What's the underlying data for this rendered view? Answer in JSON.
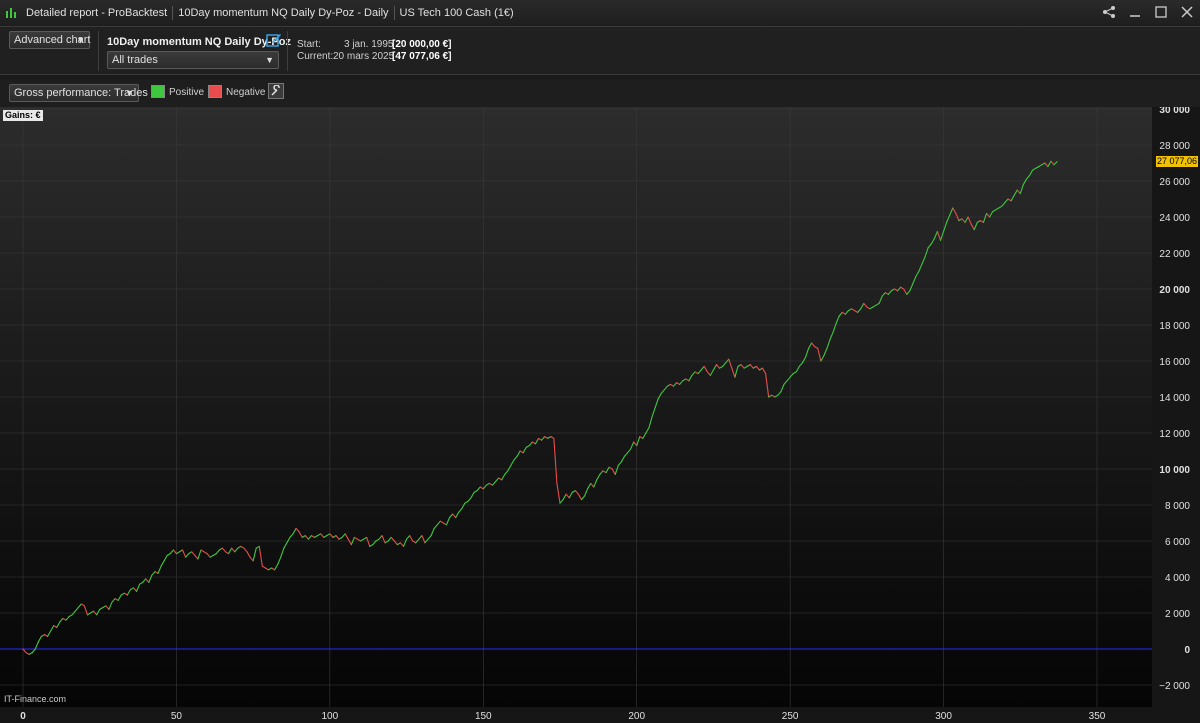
{
  "titlebar": {
    "app_title": "Detailed report - ProBacktest",
    "system_title": "10Day momentum NQ Daily Dy-Poz - Daily",
    "instrument": "US Tech 100 Cash (1€)"
  },
  "toolbar": {
    "chart_mode": "Advanced chart",
    "system_name": "10Day momentum NQ Daily Dy-Poz",
    "trades_filter": "All trades",
    "start_label": "Start:",
    "start_date": "3 jan. 1995",
    "start_value": "[20 000,00 €]",
    "current_label": "Current:",
    "current_date": "20 mars 2025",
    "current_value": "[47 077,06 €]"
  },
  "options": {
    "perf_select": "Gross performance: Trades",
    "positive_label": "Positive",
    "negative_label": "Negative",
    "positive_color": "#3ec83e",
    "negative_color": "#e84c4c"
  },
  "chart_panel": {
    "gains_label": "Gains: €",
    "current_tag": "27 077,06",
    "watermark": "IT-Finance.com"
  },
  "chart_data": {
    "type": "line",
    "xlabel": "",
    "ylabel": "",
    "xlim": [
      0,
      350
    ],
    "ylim": [
      -2000,
      30000
    ],
    "x_ticks": [
      0,
      50,
      100,
      150,
      200,
      250,
      300,
      350
    ],
    "y_ticks": [
      -2000,
      0,
      2000,
      4000,
      6000,
      8000,
      10000,
      12000,
      14000,
      16000,
      18000,
      20000,
      22000,
      24000,
      26000,
      28000,
      30000
    ],
    "y_tick_labels": [
      "−2 000",
      "0",
      "2 000",
      "4 000",
      "6 000",
      "8 000",
      "10 000",
      "12 000",
      "14 000",
      "16 000",
      "18 000",
      "20 000",
      "22 000",
      "24 000",
      "26 000",
      "28 000",
      "30 000"
    ],
    "bold_y_ticks": [
      0,
      10000,
      20000,
      30000
    ],
    "baseline": 0,
    "baseline_color": "#2a2aff",
    "grid": true,
    "points": [
      [
        0,
        0
      ],
      [
        1,
        -200
      ],
      [
        2,
        -300
      ],
      [
        3,
        -200
      ],
      [
        4,
        0
      ],
      [
        5,
        400
      ],
      [
        6,
        700
      ],
      [
        7,
        800
      ],
      [
        8,
        700
      ],
      [
        9,
        1000
      ],
      [
        10,
        1300
      ],
      [
        11,
        1200
      ],
      [
        12,
        1500
      ],
      [
        13,
        1700
      ],
      [
        14,
        1600
      ],
      [
        15,
        1800
      ],
      [
        16,
        1900
      ],
      [
        17,
        2100
      ],
      [
        18,
        2300
      ],
      [
        19,
        2500
      ],
      [
        20,
        2400
      ],
      [
        21,
        1900
      ],
      [
        22,
        2000
      ],
      [
        23,
        2100
      ],
      [
        24,
        1900
      ],
      [
        25,
        2200
      ],
      [
        26,
        2300
      ],
      [
        27,
        2400
      ],
      [
        28,
        2200
      ],
      [
        29,
        2600
      ],
      [
        30,
        2800
      ],
      [
        31,
        2700
      ],
      [
        32,
        3000
      ],
      [
        33,
        3100
      ],
      [
        34,
        3000
      ],
      [
        35,
        3300
      ],
      [
        36,
        3400
      ],
      [
        37,
        3200
      ],
      [
        38,
        3600
      ],
      [
        39,
        3700
      ],
      [
        40,
        3900
      ],
      [
        41,
        3700
      ],
      [
        42,
        4100
      ],
      [
        43,
        4300
      ],
      [
        44,
        4200
      ],
      [
        45,
        4600
      ],
      [
        46,
        4900
      ],
      [
        47,
        5200
      ],
      [
        48,
        5300
      ],
      [
        49,
        5500
      ],
      [
        50,
        5300
      ],
      [
        51,
        5400
      ],
      [
        52,
        5500
      ],
      [
        53,
        5100
      ],
      [
        54,
        5300
      ],
      [
        55,
        5400
      ],
      [
        56,
        5200
      ],
      [
        57,
        5000
      ],
      [
        58,
        5500
      ],
      [
        59,
        5400
      ],
      [
        60,
        5300
      ],
      [
        61,
        5100
      ],
      [
        62,
        5200
      ],
      [
        63,
        5300
      ],
      [
        64,
        5500
      ],
      [
        65,
        5600
      ],
      [
        66,
        5400
      ],
      [
        67,
        5300
      ],
      [
        68,
        5600
      ],
      [
        69,
        5400
      ],
      [
        70,
        5600
      ],
      [
        71,
        5700
      ],
      [
        72,
        5600
      ],
      [
        73,
        5400
      ],
      [
        74,
        5100
      ],
      [
        75,
        4900
      ],
      [
        76,
        5600
      ],
      [
        77,
        5700
      ],
      [
        78,
        4600
      ],
      [
        79,
        4500
      ],
      [
        80,
        4400
      ],
      [
        81,
        4500
      ],
      [
        82,
        4400
      ],
      [
        83,
        4700
      ],
      [
        84,
        5100
      ],
      [
        85,
        5600
      ],
      [
        86,
        5900
      ],
      [
        87,
        6200
      ],
      [
        88,
        6400
      ],
      [
        89,
        6700
      ],
      [
        90,
        6500
      ],
      [
        91,
        6200
      ],
      [
        92,
        6300
      ],
      [
        93,
        6100
      ],
      [
        94,
        6300
      ],
      [
        95,
        6200
      ],
      [
        96,
        6300
      ],
      [
        97,
        6400
      ],
      [
        98,
        6200
      ],
      [
        99,
        6300
      ],
      [
        100,
        6400
      ],
      [
        101,
        6200
      ],
      [
        102,
        6300
      ],
      [
        103,
        6100
      ],
      [
        104,
        6200
      ],
      [
        105,
        6400
      ],
      [
        106,
        6100
      ],
      [
        107,
        5800
      ],
      [
        108,
        6200
      ],
      [
        109,
        6100
      ],
      [
        110,
        6000
      ],
      [
        111,
        6100
      ],
      [
        112,
        6200
      ],
      [
        113,
        5700
      ],
      [
        114,
        5800
      ],
      [
        115,
        6000
      ],
      [
        116,
        6100
      ],
      [
        117,
        6300
      ],
      [
        118,
        5900
      ],
      [
        119,
        6000
      ],
      [
        120,
        6200
      ],
      [
        121,
        6000
      ],
      [
        122,
        5800
      ],
      [
        123,
        5900
      ],
      [
        124,
        5700
      ],
      [
        125,
        6100
      ],
      [
        126,
        6300
      ],
      [
        127,
        6000
      ],
      [
        128,
        5900
      ],
      [
        129,
        6100
      ],
      [
        130,
        6300
      ],
      [
        131,
        5900
      ],
      [
        132,
        6100
      ],
      [
        133,
        6300
      ],
      [
        134,
        6700
      ],
      [
        135,
        6900
      ],
      [
        136,
        7100
      ],
      [
        137,
        7000
      ],
      [
        138,
        6900
      ],
      [
        139,
        7300
      ],
      [
        140,
        7500
      ],
      [
        141,
        7300
      ],
      [
        142,
        7600
      ],
      [
        143,
        7800
      ],
      [
        144,
        8100
      ],
      [
        145,
        8200
      ],
      [
        146,
        8400
      ],
      [
        147,
        8700
      ],
      [
        148,
        8800
      ],
      [
        149,
        9000
      ],
      [
        150,
        8900
      ],
      [
        151,
        9100
      ],
      [
        152,
        9200
      ],
      [
        153,
        9100
      ],
      [
        154,
        9300
      ],
      [
        155,
        9500
      ],
      [
        156,
        9400
      ],
      [
        157,
        9700
      ],
      [
        158,
        9900
      ],
      [
        159,
        10200
      ],
      [
        160,
        10500
      ],
      [
        161,
        10700
      ],
      [
        162,
        11000
      ],
      [
        163,
        10900
      ],
      [
        164,
        11200
      ],
      [
        165,
        11300
      ],
      [
        166,
        11500
      ],
      [
        167,
        11400
      ],
      [
        168,
        11700
      ],
      [
        169,
        11600
      ],
      [
        170,
        11800
      ],
      [
        171,
        11700
      ],
      [
        172,
        11800
      ],
      [
        173,
        11700
      ],
      [
        174,
        9200
      ],
      [
        175,
        8100
      ],
      [
        176,
        8300
      ],
      [
        177,
        8600
      ],
      [
        178,
        8400
      ],
      [
        179,
        8700
      ],
      [
        180,
        8800
      ],
      [
        181,
        8600
      ],
      [
        182,
        8300
      ],
      [
        183,
        8500
      ],
      [
        184,
        8900
      ],
      [
        185,
        9200
      ],
      [
        186,
        9000
      ],
      [
        187,
        9400
      ],
      [
        188,
        9700
      ],
      [
        189,
        9900
      ],
      [
        190,
        9800
      ],
      [
        191,
        10100
      ],
      [
        192,
        10000
      ],
      [
        193,
        9700
      ],
      [
        194,
        10200
      ],
      [
        195,
        10400
      ],
      [
        196,
        10700
      ],
      [
        197,
        10900
      ],
      [
        198,
        11100
      ],
      [
        199,
        11500
      ],
      [
        200,
        11300
      ],
      [
        201,
        11800
      ],
      [
        202,
        11700
      ],
      [
        203,
        12000
      ],
      [
        204,
        12300
      ],
      [
        205,
        12900
      ],
      [
        206,
        13400
      ],
      [
        207,
        13900
      ],
      [
        208,
        14200
      ],
      [
        209,
        14400
      ],
      [
        210,
        14600
      ],
      [
        211,
        14700
      ],
      [
        212,
        14600
      ],
      [
        213,
        14800
      ],
      [
        214,
        14700
      ],
      [
        215,
        14900
      ],
      [
        216,
        15000
      ],
      [
        217,
        14900
      ],
      [
        218,
        15200
      ],
      [
        219,
        15400
      ],
      [
        220,
        15300
      ],
      [
        221,
        15500
      ],
      [
        222,
        15700
      ],
      [
        223,
        15400
      ],
      [
        224,
        15200
      ],
      [
        225,
        15500
      ],
      [
        226,
        15800
      ],
      [
        227,
        15600
      ],
      [
        228,
        15700
      ],
      [
        229,
        15900
      ],
      [
        230,
        16100
      ],
      [
        231,
        15600
      ],
      [
        232,
        15100
      ],
      [
        233,
        15700
      ],
      [
        234,
        15800
      ],
      [
        235,
        15600
      ],
      [
        236,
        15700
      ],
      [
        237,
        15800
      ],
      [
        238,
        15600
      ],
      [
        239,
        15700
      ],
      [
        240,
        15500
      ],
      [
        241,
        15600
      ],
      [
        242,
        15300
      ],
      [
        243,
        14000
      ],
      [
        244,
        14100
      ],
      [
        245,
        14000
      ],
      [
        246,
        14100
      ],
      [
        247,
        14300
      ],
      [
        248,
        14700
      ],
      [
        249,
        14900
      ],
      [
        250,
        15100
      ],
      [
        251,
        15300
      ],
      [
        252,
        15400
      ],
      [
        253,
        15700
      ],
      [
        254,
        15900
      ],
      [
        255,
        16200
      ],
      [
        256,
        16700
      ],
      [
        257,
        17000
      ],
      [
        258,
        16800
      ],
      [
        259,
        16700
      ],
      [
        260,
        16000
      ],
      [
        261,
        16300
      ],
      [
        262,
        16700
      ],
      [
        263,
        17200
      ],
      [
        264,
        17600
      ],
      [
        265,
        18100
      ],
      [
        266,
        18500
      ],
      [
        267,
        18700
      ],
      [
        268,
        18600
      ],
      [
        269,
        18800
      ],
      [
        270,
        18900
      ],
      [
        271,
        18800
      ],
      [
        272,
        18700
      ],
      [
        273,
        18900
      ],
      [
        274,
        19200
      ],
      [
        275,
        19000
      ],
      [
        276,
        18900
      ],
      [
        277,
        19000
      ],
      [
        278,
        19100
      ],
      [
        279,
        19200
      ],
      [
        280,
        19600
      ],
      [
        281,
        19800
      ],
      [
        282,
        19700
      ],
      [
        283,
        19900
      ],
      [
        284,
        20000
      ],
      [
        285,
        19900
      ],
      [
        286,
        20100
      ],
      [
        287,
        20000
      ],
      [
        288,
        19700
      ],
      [
        289,
        19900
      ],
      [
        290,
        20300
      ],
      [
        291,
        20700
      ],
      [
        292,
        21000
      ],
      [
        293,
        21400
      ],
      [
        294,
        21800
      ],
      [
        295,
        22300
      ],
      [
        296,
        22500
      ],
      [
        297,
        22800
      ],
      [
        298,
        23200
      ],
      [
        299,
        22700
      ],
      [
        300,
        23200
      ],
      [
        301,
        23700
      ],
      [
        302,
        24100
      ],
      [
        303,
        24500
      ],
      [
        304,
        24200
      ],
      [
        305,
        23800
      ],
      [
        306,
        23900
      ],
      [
        307,
        23700
      ],
      [
        308,
        24000
      ],
      [
        309,
        23600
      ],
      [
        310,
        23300
      ],
      [
        311,
        23700
      ],
      [
        312,
        23800
      ],
      [
        313,
        23700
      ],
      [
        314,
        24200
      ],
      [
        315,
        24000
      ],
      [
        316,
        24300
      ],
      [
        317,
        24400
      ],
      [
        318,
        24500
      ],
      [
        319,
        24600
      ],
      [
        320,
        24800
      ],
      [
        321,
        25000
      ],
      [
        322,
        24900
      ],
      [
        323,
        25200
      ],
      [
        324,
        25500
      ],
      [
        325,
        25300
      ],
      [
        326,
        25800
      ],
      [
        327,
        26100
      ],
      [
        328,
        26300
      ],
      [
        329,
        26600
      ],
      [
        330,
        26700
      ],
      [
        331,
        26800
      ],
      [
        332,
        26900
      ],
      [
        333,
        27000
      ],
      [
        334,
        26800
      ],
      [
        335,
        27100
      ],
      [
        336,
        26900
      ],
      [
        337,
        27077
      ]
    ]
  }
}
